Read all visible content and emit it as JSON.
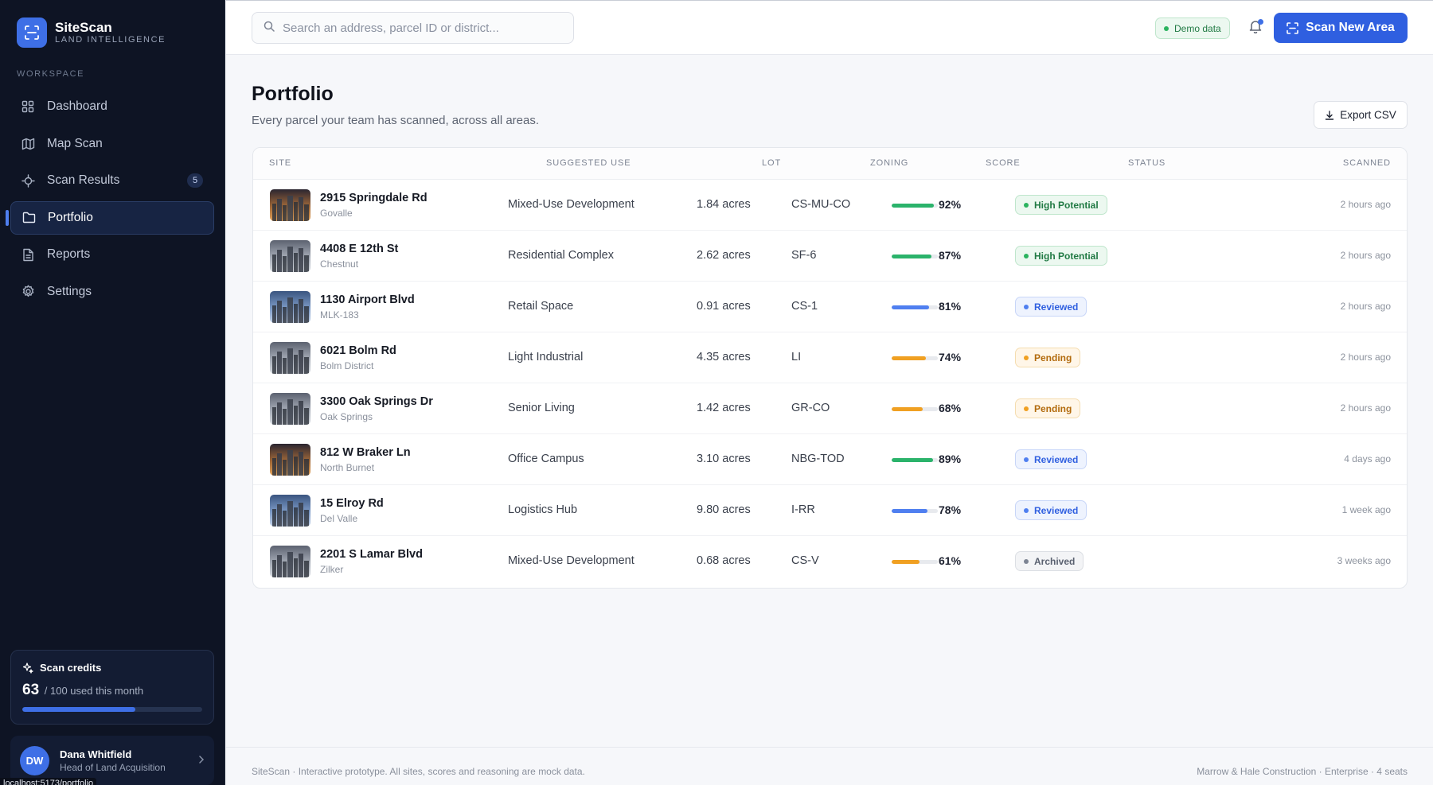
{
  "brand": {
    "name": "SiteScan",
    "tagline": "LAND INTELLIGENCE"
  },
  "sidebar": {
    "section_label": "WORKSPACE",
    "items": [
      {
        "label": "Dashboard",
        "icon": "grid-icon"
      },
      {
        "label": "Map Scan",
        "icon": "map-icon"
      },
      {
        "label": "Scan Results",
        "icon": "crosshair-icon",
        "badge": "5"
      },
      {
        "label": "Portfolio",
        "icon": "folder-icon",
        "active": true
      },
      {
        "label": "Reports",
        "icon": "file-icon"
      },
      {
        "label": "Settings",
        "icon": "gear-icon"
      }
    ],
    "credits": {
      "title": "Scan credits",
      "used": "63",
      "suffix": "/ 100 used this month",
      "used_fraction": 0.63
    },
    "user": {
      "initials": "DW",
      "name": "Dana Whitfield",
      "role": "Head of Land Acquisition"
    },
    "url_tooltip": "localhost:5173/portfolio"
  },
  "topbar": {
    "search_placeholder": "Search an address, parcel ID or district...",
    "demo_badge": "Demo data",
    "scan_button": "Scan New Area"
  },
  "main": {
    "title": "Portfolio",
    "subtitle": "Every parcel your team has scanned, across all areas.",
    "export_button": "Export CSV",
    "columns": [
      "SITE",
      "SUGGESTED USE",
      "LOT",
      "ZONING",
      "SCORE",
      "STATUS",
      "SCANNED"
    ],
    "rows": [
      {
        "name": "2915 Springdale Rd",
        "area": "Govalle",
        "use": "Mixed-Use Development",
        "lot": "1.84 acres",
        "zoning": "CS-MU-CO",
        "score": 92,
        "score_label": "92%",
        "status": "High Potential",
        "scanned": "2 hours ago",
        "thumb": "dusk"
      },
      {
        "name": "4408 E 12th St",
        "area": "Chestnut",
        "use": "Residential Complex",
        "lot": "2.62 acres",
        "zoning": "SF-6",
        "score": 87,
        "score_label": "87%",
        "status": "High Potential",
        "scanned": "2 hours ago",
        "thumb": "grey"
      },
      {
        "name": "1130 Airport Blvd",
        "area": "MLK-183",
        "use": "Retail Space",
        "lot": "0.91 acres",
        "zoning": "CS-1",
        "score": 81,
        "score_label": "81%",
        "status": "Reviewed",
        "scanned": "2 hours ago",
        "thumb": "blue"
      },
      {
        "name": "6021 Bolm Rd",
        "area": "Bolm District",
        "use": "Light Industrial",
        "lot": "4.35 acres",
        "zoning": "LI",
        "score": 74,
        "score_label": "74%",
        "status": "Pending",
        "scanned": "2 hours ago",
        "thumb": "grey"
      },
      {
        "name": "3300 Oak Springs Dr",
        "area": "Oak Springs",
        "use": "Senior Living",
        "lot": "1.42 acres",
        "zoning": "GR-CO",
        "score": 68,
        "score_label": "68%",
        "status": "Pending",
        "scanned": "2 hours ago",
        "thumb": "grey"
      },
      {
        "name": "812 W Braker Ln",
        "area": "North Burnet",
        "use": "Office Campus",
        "lot": "3.10 acres",
        "zoning": "NBG-TOD",
        "score": 89,
        "score_label": "89%",
        "status": "Reviewed",
        "scanned": "4 days ago",
        "thumb": "dusk"
      },
      {
        "name": "15 Elroy Rd",
        "area": "Del Valle",
        "use": "Logistics Hub",
        "lot": "9.80 acres",
        "zoning": "I-RR",
        "score": 78,
        "score_label": "78%",
        "status": "Reviewed",
        "scanned": "1 week ago",
        "thumb": "blue"
      },
      {
        "name": "2201 S Lamar Blvd",
        "area": "Zilker",
        "use": "Mixed-Use Development",
        "lot": "0.68 acres",
        "zoning": "CS-V",
        "score": 61,
        "score_label": "61%",
        "status": "Archived",
        "scanned": "3 weeks ago",
        "thumb": "grey"
      }
    ]
  },
  "footer": {
    "left": "SiteScan · Interactive prototype. All sites, scores and reasoning are mock data.",
    "right": "Marrow & Hale Construction · Enterprise · 4 seats"
  },
  "colors": {
    "accent": "#2f5fe0",
    "score_high": "#2bb36b",
    "score_mid": "#4f7ff0",
    "score_low": "#f0a022",
    "status_high_potential": "#217a44",
    "status_reviewed": "#2f5fe0",
    "status_pending": "#b26a0c",
    "status_archived": "#5a6170"
  }
}
